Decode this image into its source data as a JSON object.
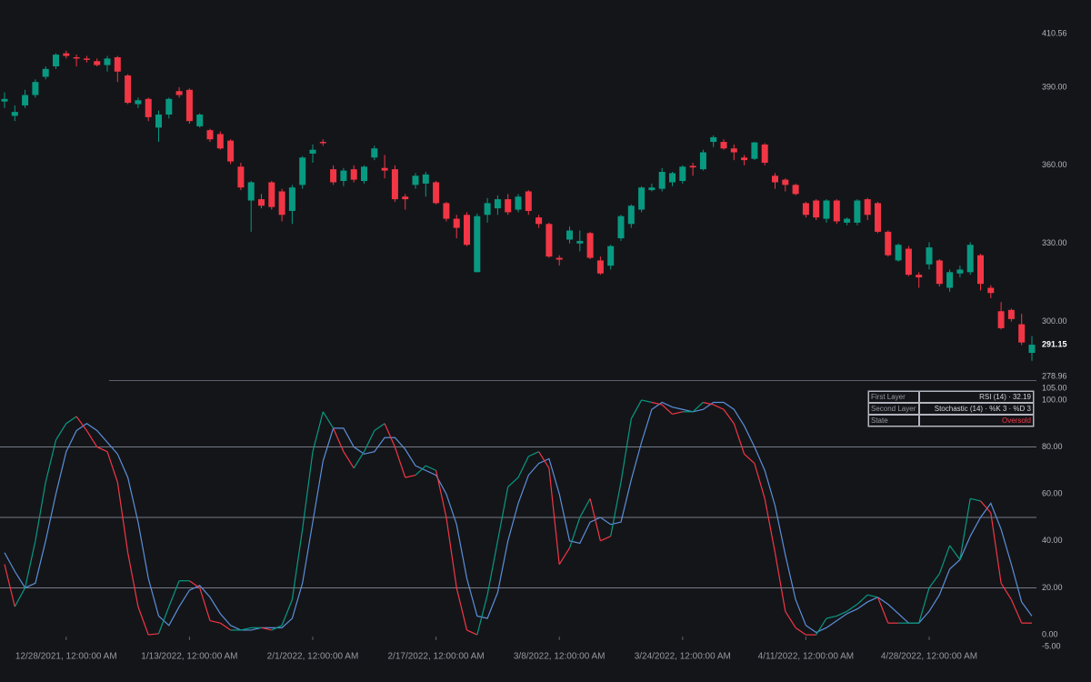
{
  "chart_data": [
    {
      "type": "candlestick",
      "categories": [
        null,
        null,
        null,
        null,
        null,
        null,
        "12/28/2021, 12:00:00 AM",
        null,
        null,
        null,
        null,
        null,
        null,
        null,
        null,
        null,
        null,
        null,
        "1/13/2022, 12:00:00 AM",
        null,
        null,
        null,
        null,
        null,
        null,
        null,
        null,
        null,
        null,
        null,
        "2/1/2022, 12:00:00 AM",
        null,
        null,
        null,
        null,
        null,
        null,
        null,
        null,
        null,
        null,
        null,
        "2/17/2022, 12:00:00 AM",
        null,
        null,
        null,
        null,
        null,
        null,
        null,
        null,
        null,
        null,
        null,
        "3/8/2022, 12:00:00 AM",
        null,
        null,
        null,
        null,
        null,
        null,
        null,
        null,
        null,
        null,
        null,
        "3/24/2022, 12:00:00 AM",
        null,
        null,
        null,
        null,
        null,
        null,
        null,
        null,
        null,
        null,
        null,
        "4/11/2022, 12:00:00 AM",
        null,
        null,
        null,
        null,
        null,
        null,
        null,
        null,
        null,
        null,
        null,
        "4/28/2022, 12:00:00 AM",
        null,
        null,
        null,
        null,
        null,
        null,
        null,
        null,
        null,
        null
      ],
      "open": [
        384.5,
        379,
        383,
        387,
        394,
        398,
        403,
        401.5,
        401,
        400,
        398.5,
        401.5,
        394.5,
        383.5,
        385.5,
        374.5,
        379.5,
        388.5,
        389,
        375,
        373.5,
        372,
        369.5,
        359.5,
        346.5,
        347,
        353.5,
        350,
        342.5,
        352.5,
        364.5,
        369,
        358.5,
        354,
        358.5,
        354,
        363,
        359,
        358.5,
        348,
        352.5,
        353,
        353.5,
        345.5,
        339.5,
        341,
        319,
        341,
        343.5,
        347,
        343,
        350,
        340,
        337.5,
        324.5,
        331.5,
        330,
        334,
        323.5,
        321.5,
        332,
        337.5,
        343,
        350.5,
        351,
        353.5,
        354,
        359.8,
        358.5,
        369,
        369,
        366.5,
        363,
        362.5,
        368,
        356,
        354.5,
        352.5,
        345.5,
        346.5,
        339.5,
        346.5,
        338,
        338,
        347,
        345.5,
        334.5,
        323.5,
        328,
        318,
        322,
        323.5,
        313,
        318.5,
        319,
        325.5,
        313,
        304,
        304.5,
        299,
        288
      ],
      "high": [
        388,
        383,
        389,
        393,
        398,
        403,
        404,
        402.5,
        402,
        401,
        402,
        402,
        395,
        386,
        386,
        381,
        386,
        390,
        389.5,
        380,
        374,
        373,
        370,
        361,
        354,
        349,
        354,
        351,
        352.5,
        363.5,
        368,
        370,
        360,
        359,
        360,
        360,
        367.5,
        364,
        360,
        349,
        357,
        357.5,
        354,
        346,
        341,
        342,
        341.5,
        347.5,
        348.5,
        349,
        349,
        350.5,
        341,
        338,
        325.5,
        336.5,
        335,
        334.5,
        325,
        329.5,
        341,
        345,
        352,
        353,
        359,
        357.5,
        360,
        361,
        366,
        371.5,
        370,
        368,
        364,
        369,
        368.5,
        357,
        355,
        353,
        346,
        347,
        347,
        347,
        340,
        347,
        347.5,
        346,
        335,
        330,
        329,
        319,
        330.5,
        324,
        320,
        321.5,
        330.5,
        326,
        314,
        307.5,
        305,
        303,
        294.5
      ],
      "low": [
        382,
        377,
        382,
        386,
        393,
        397,
        401,
        398,
        399.5,
        398,
        396,
        392,
        383.5,
        382,
        377,
        369,
        378,
        386,
        376,
        374.5,
        369,
        366,
        360.5,
        350.5,
        334.5,
        343.5,
        343,
        338.5,
        337.5,
        351,
        361,
        367.5,
        352.5,
        352,
        353.5,
        353,
        362,
        355,
        346,
        343,
        351,
        348,
        345,
        338.5,
        332,
        329,
        319,
        338,
        341,
        341,
        342,
        341,
        336,
        324.5,
        321.5,
        330,
        327,
        324,
        318,
        320,
        331,
        336,
        342,
        350,
        350,
        352,
        353,
        356,
        358,
        367,
        366,
        362,
        360,
        362,
        360,
        351,
        350,
        348.5,
        340,
        339,
        338,
        337.5,
        337,
        337,
        339,
        334,
        325,
        323,
        317.5,
        313,
        320,
        313.5,
        311.5,
        317,
        318,
        312,
        309,
        297,
        300,
        291,
        285
      ],
      "close": [
        385.5,
        380.5,
        387,
        392,
        397,
        402.5,
        402,
        401,
        400.5,
        398.5,
        401,
        396,
        384,
        385,
        378.5,
        379.5,
        385.5,
        387,
        377,
        379.5,
        370,
        366.5,
        361.5,
        351.5,
        353.5,
        344.5,
        344,
        341,
        351.5,
        363,
        366,
        368.5,
        353.5,
        358,
        354.5,
        359.5,
        366.5,
        358,
        347,
        347,
        356,
        356.5,
        345.5,
        339.5,
        336,
        329.5,
        340.5,
        345.5,
        347,
        342,
        348,
        342.5,
        337.5,
        325,
        323.8,
        335,
        331,
        324.5,
        318.5,
        329,
        340.5,
        344.5,
        351.5,
        351.5,
        357.5,
        357,
        359.5,
        359.2,
        365,
        370.8,
        366.5,
        365,
        362,
        368.8,
        361,
        353.5,
        352.5,
        349,
        341,
        340,
        346.5,
        338.5,
        339.5,
        346.5,
        341,
        334.5,
        325.5,
        329.5,
        318,
        317,
        328.5,
        314.5,
        319,
        320,
        329.5,
        314.5,
        311,
        297.5,
        301,
        292,
        291.15
      ],
      "up_color": "#089981",
      "down_color": "#f23645",
      "ylim": [
        278.96,
        410.56
      ],
      "yticks": [
        {
          "value": 410.56,
          "label": "410.56"
        },
        {
          "value": 390,
          "label": "390.00"
        },
        {
          "value": 360,
          "label": "360.00"
        },
        {
          "value": 330,
          "label": "330.00"
        },
        {
          "value": 300,
          "label": "300.00"
        },
        {
          "value": 278.96,
          "label": "278.96"
        }
      ]
    },
    {
      "type": "line",
      "series": [
        {
          "name": "%K",
          "up_color": "#089981",
          "down_color": "#f23645",
          "values": [
            30,
            12,
            20,
            40,
            65,
            83,
            90,
            93,
            87,
            80,
            78,
            65,
            35,
            12,
            0,
            0.5,
            12,
            23,
            23,
            20,
            6,
            5,
            2,
            2,
            3,
            3,
            2,
            4,
            15,
            45,
            78,
            95,
            88,
            78,
            71,
            78,
            87,
            90,
            80,
            67,
            68,
            72,
            70,
            50,
            20,
            2,
            0,
            17,
            40,
            63,
            67,
            76,
            78,
            71,
            30,
            37,
            50,
            58,
            40,
            42,
            65,
            92,
            100,
            99,
            98,
            94,
            95,
            95,
            99,
            98,
            96,
            90,
            77,
            73,
            58,
            35,
            10,
            3,
            0,
            0,
            7,
            8,
            10,
            13,
            17,
            16,
            5,
            5,
            5,
            5,
            20,
            26,
            38,
            32,
            58,
            57,
            52,
            22,
            15,
            5,
            5
          ]
        },
        {
          "name": "%D",
          "color": "#5b8fd8",
          "values": [
            35,
            27,
            20,
            22,
            40,
            60,
            78,
            87,
            90,
            87,
            82,
            77,
            67,
            48,
            24,
            8,
            4,
            12,
            19,
            21,
            16,
            9,
            4,
            2,
            2,
            3,
            3,
            3,
            7,
            22,
            48,
            74,
            88,
            88,
            80,
            77,
            78,
            84,
            84,
            79,
            72,
            70,
            68,
            60,
            47,
            24,
            8,
            7,
            18,
            40,
            56,
            68,
            73,
            75,
            60,
            40,
            39,
            48,
            50,
            47,
            48,
            66,
            82,
            96,
            99,
            97,
            96,
            95,
            96,
            99,
            99,
            96,
            89,
            80,
            70,
            55,
            34,
            15,
            4,
            1,
            3,
            6,
            9,
            11,
            14,
            16,
            13,
            9,
            5,
            5,
            10,
            17,
            28,
            32,
            42,
            50,
            56,
            45,
            30,
            14,
            8
          ]
        }
      ],
      "levels": [
        80,
        50,
        20
      ],
      "ylim": [
        -5,
        105
      ],
      "yticks": [
        {
          "value": 105,
          "label": "105.00"
        },
        {
          "value": 100,
          "label": "100.00"
        },
        {
          "value": 80,
          "label": "80.00"
        },
        {
          "value": 60,
          "label": "60.00"
        },
        {
          "value": 40,
          "label": "40.00"
        },
        {
          "value": 20,
          "label": "20.00"
        },
        {
          "value": 0,
          "label": "0.00"
        },
        {
          "value": -5,
          "label": "-5.00"
        }
      ]
    }
  ],
  "table": {
    "rows": [
      [
        "First Layer",
        "RSI (14) · 32.19"
      ],
      [
        "Second Layer",
        "Stochastic (14) · %K 3 · %D 3"
      ],
      [
        "State",
        "Oversold"
      ]
    ],
    "state_color": "#f23645"
  }
}
